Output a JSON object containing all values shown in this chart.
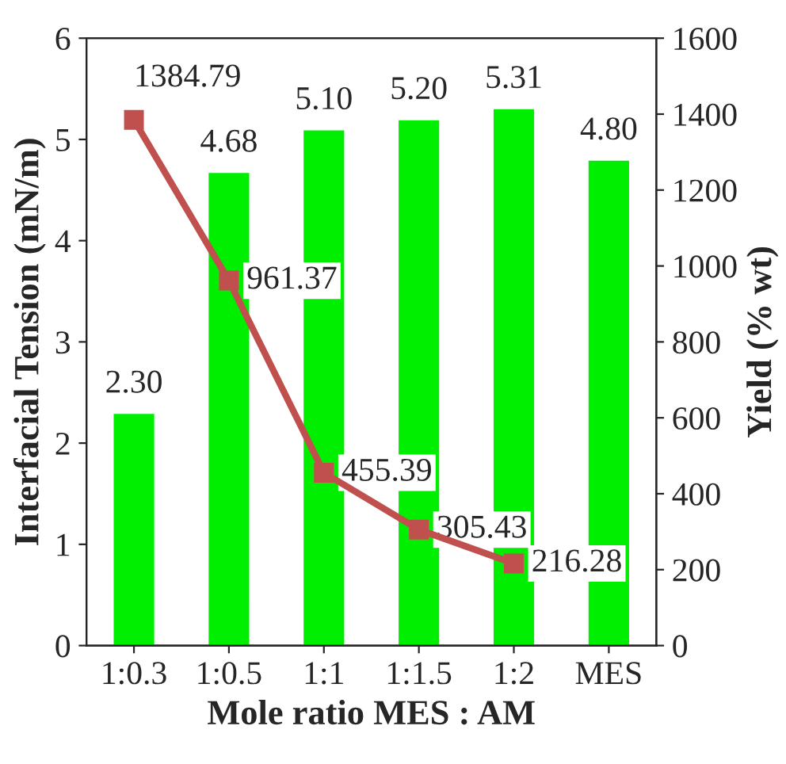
{
  "chart_data": {
    "type": "bar",
    "xlabel": "Mole ratio MES : AM",
    "ylabel": "Interfacial Tension (mN/m)",
    "y2label": "Yield (% wt)",
    "categories": [
      "1:0.3",
      "1:0.5",
      "1:1",
      "1:1.5",
      "1:2",
      "MES"
    ],
    "series": [
      {
        "color": "#00ee00",
        "values": [
          2.3,
          4.68,
          5.1,
          5.2,
          5.31,
          4.8
        ],
        "value_labels": [
          "2.30",
          "4.68",
          "5.10",
          "5.20",
          "5.31",
          "4.80"
        ]
      },
      {
        "type": "line",
        "axis": "y2",
        "color": "#c0504d",
        "marker": "square",
        "values": [
          1384.79,
          961.37,
          455.39,
          305.43,
          216.28,
          null
        ],
        "value_labels": [
          "1384.79",
          "961.37",
          "455.39",
          "305.43",
          "216.28",
          null
        ]
      }
    ],
    "ylim": [
      0,
      6
    ],
    "yticks": [
      0,
      1,
      2,
      3,
      4,
      5,
      6
    ],
    "y2lim": [
      0,
      1600
    ],
    "y2ticks": [
      0,
      200,
      400,
      600,
      800,
      1000,
      1200,
      1400,
      1600
    ],
    "grid": false,
    "legend": false
  }
}
